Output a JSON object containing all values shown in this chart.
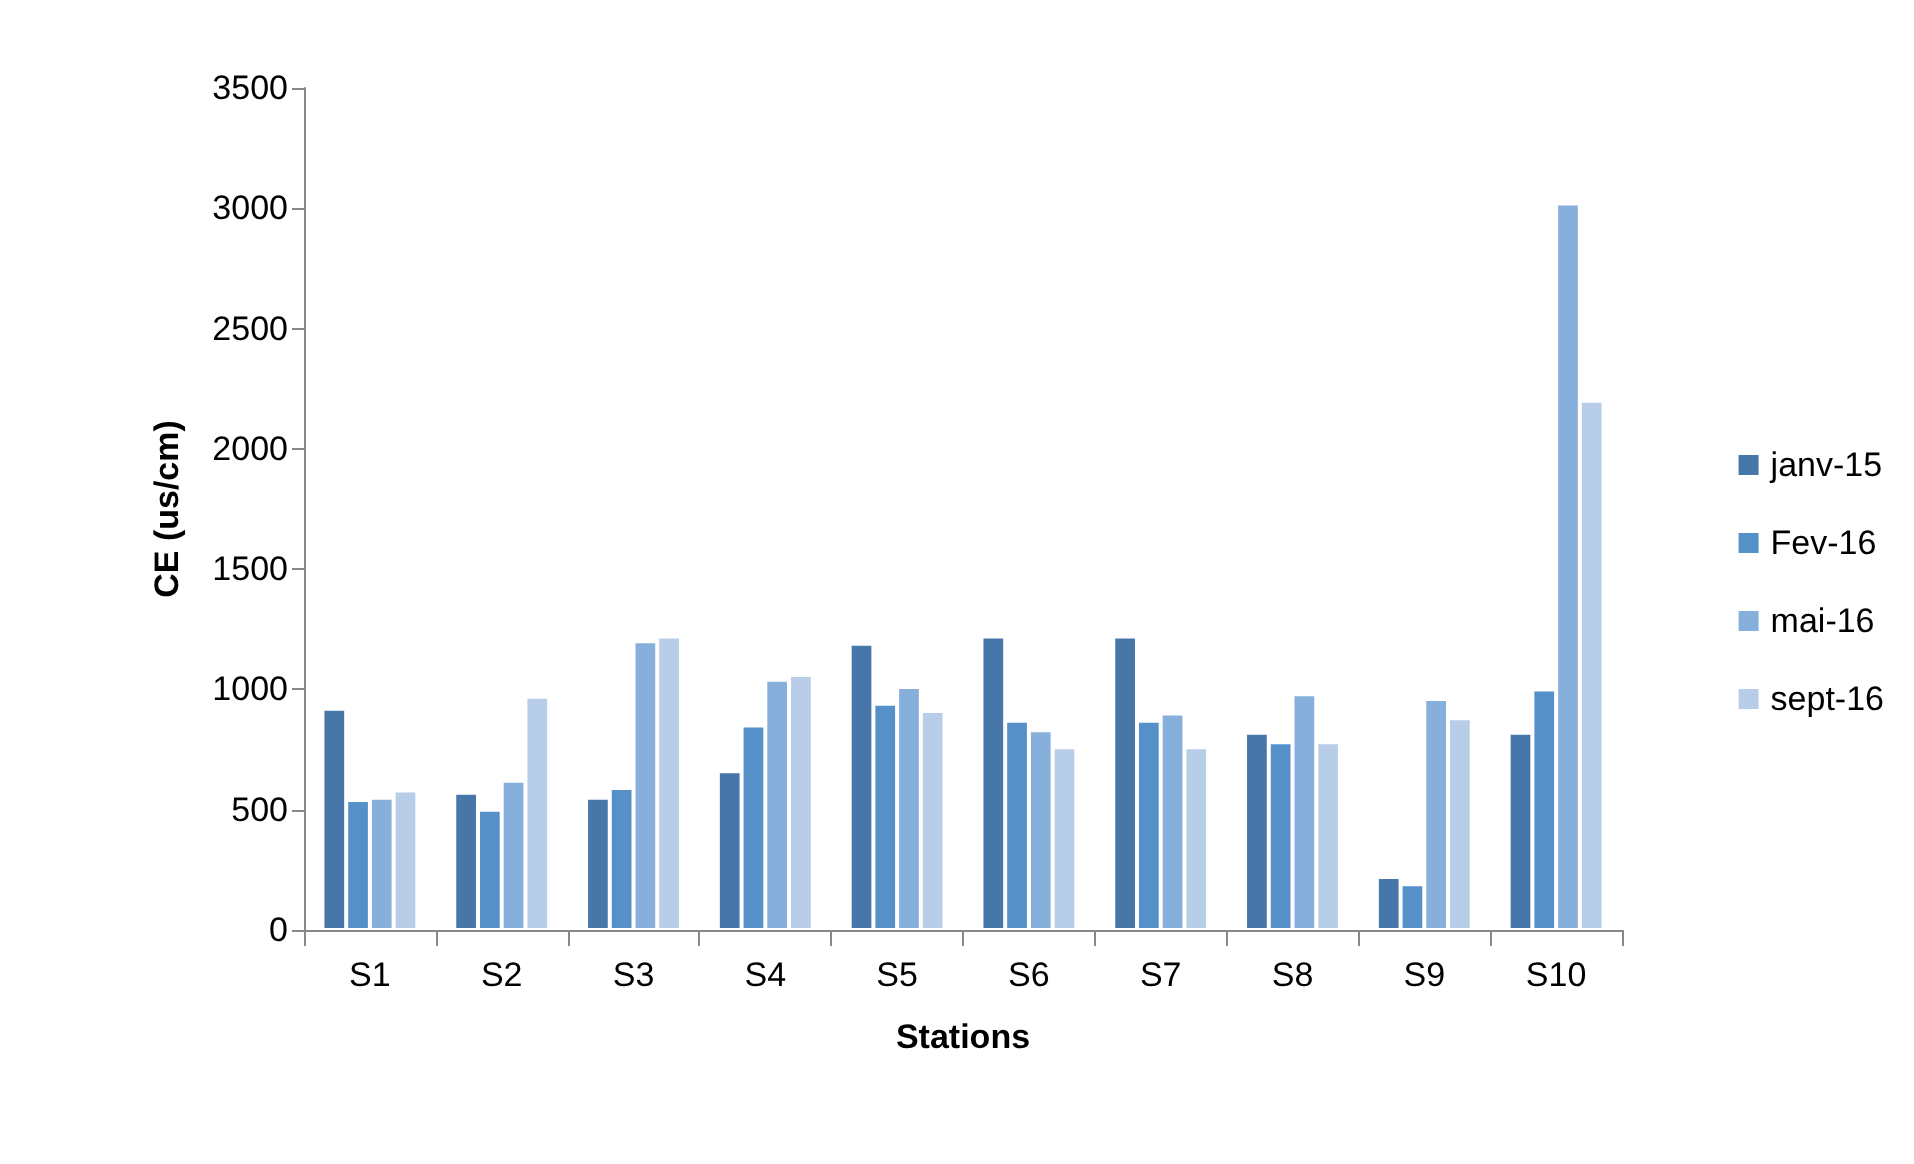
{
  "chart_data": {
    "type": "bar",
    "xlabel": "Stations",
    "ylabel": "CE (us/cm)",
    "categories": [
      "S1",
      "S2",
      "S3",
      "S4",
      "S5",
      "S6",
      "S7",
      "S8",
      "S9",
      "S10"
    ],
    "series": [
      {
        "name": "janv-15",
        "color": "#4677a8",
        "values": [
          920,
          570,
          550,
          660,
          1190,
          1220,
          1220,
          820,
          220,
          820
        ]
      },
      {
        "name": "Fev-16",
        "color": "#5590c8",
        "values": [
          540,
          500,
          590,
          850,
          940,
          870,
          870,
          780,
          190,
          1000
        ]
      },
      {
        "name": "mai-16",
        "color": "#86afdc",
        "values": [
          550,
          620,
          1200,
          1040,
          1010,
          830,
          900,
          980,
          960,
          3020
        ]
      },
      {
        "name": "sept-16",
        "color": "#b8cde8",
        "values": [
          580,
          970,
          1220,
          1060,
          910,
          760,
          760,
          780,
          880,
          2200
        ]
      }
    ],
    "ylim": [
      0,
      3500
    ],
    "yticks": [
      0,
      500,
      1000,
      1500,
      2000,
      2500,
      3000,
      3500
    ],
    "grid": false,
    "legend": "right"
  }
}
